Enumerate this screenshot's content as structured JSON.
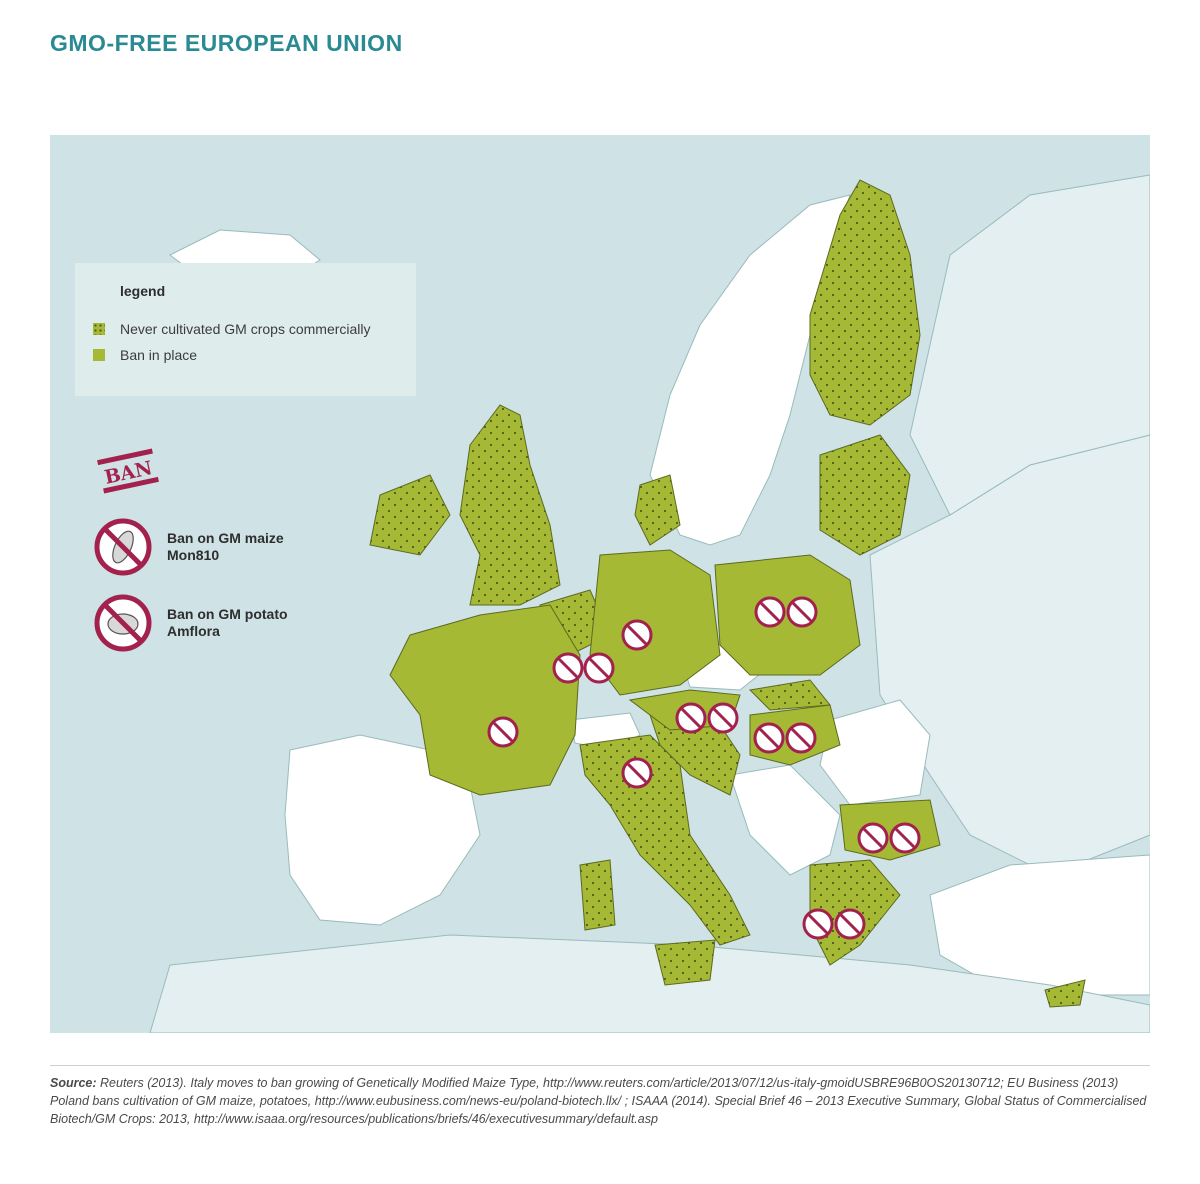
{
  "title": "GMO-FREE EUROPEAN UNION",
  "colors": {
    "sea": "#cfe2e6",
    "non_eu_land": "#ffffff",
    "other_land": "#e4eff1",
    "gmo_free_green": "#a5b935",
    "ban_red": "#a3214d",
    "title_teal": "#2a8a93"
  },
  "legend": {
    "title": "legend",
    "items": [
      {
        "label": "Never cultivated GM crops commercially",
        "swatch": "dotted-green"
      },
      {
        "label": "Ban in place",
        "swatch": "solid-green"
      }
    ]
  },
  "ban_key": {
    "stamp_text": "BAN",
    "items": [
      {
        "line1": "Ban on GM maize",
        "line2": "Mon810",
        "icon": "no-maize-icon"
      },
      {
        "line1": "Ban on GM potato",
        "line2": "Amflora",
        "icon": "no-potato-icon"
      }
    ]
  },
  "source": {
    "label": "Source:",
    "text": " Reuters (2013). Italy moves to ban growing of Genetically Modified Maize Type, http://www.reuters.com/article/2013/07/12/us-italy-gmoidUSBRE96B0OS20130712; EU Business (2013) Poland bans cultivation of GM maize, potatoes, http://www.eubusiness.com/news-eu/poland-biotech.llx/ ; ISAAA (2014). Special Brief 46 – 2013 Executive Summary, Global Status of Commercialised Biotech/GM Crops: 2013, http://www.isaaa.org/resources/publications/briefs/46/executivesummary/default.asp"
  }
}
